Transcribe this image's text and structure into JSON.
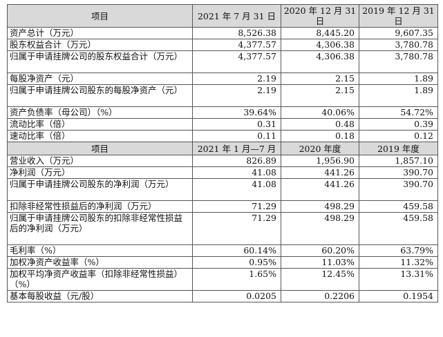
{
  "header1": [
    "项目",
    "2021 年 7 月 31 日",
    "2020 年 12 月 31 日",
    "2019 年 12 月 31 日"
  ],
  "rows1": [
    {
      "label": "资产总计（万元）",
      "values": [
        "8,526.38",
        "8,445.20",
        "9,607.35"
      ]
    },
    {
      "label": "股东权益合计（万元）",
      "values": [
        "4,377.57",
        "4,306.38",
        "3,780.78"
      ]
    },
    {
      "label": "归属于申请挂牌公司的股东权益合计（万元）",
      "values": [
        "4,377.57",
        "4,306.38",
        "3,780.78"
      ]
    },
    {
      "label": "每股净资产（元）",
      "values": [
        "2.19",
        "2.15",
        "1.89"
      ]
    },
    {
      "label": "归属于申请挂牌公司股东的每股净资产（元）",
      "values": [
        "2.19",
        "2.15",
        "1.89"
      ]
    },
    {
      "label": "资产负债率（母公司）（%）",
      "values": [
        "39.64%",
        "40.06%",
        "54.72%"
      ]
    },
    {
      "label": "流动比率（倍）",
      "values": [
        "0.31",
        "0.48",
        "0.39"
      ]
    },
    {
      "label": "速动比率（倍）",
      "values": [
        "0.11",
        "0.18",
        "0.12"
      ]
    }
  ],
  "header2": [
    "项目",
    "2021 年 1 月—7 月",
    "2020 年度",
    "2019 年度"
  ],
  "rows2": [
    {
      "label": "营业收入（万元）",
      "values": [
        "826.89",
        "1,956.90",
        "1,857.10"
      ]
    },
    {
      "label": "净利润（万元）",
      "values": [
        "41.08",
        "441.26",
        "390.70"
      ]
    },
    {
      "label": "归属于申请挂牌公司股东的净利润（万元）",
      "values": [
        "41.08",
        "441.26",
        "390.70"
      ]
    },
    {
      "label": "扣除非经常性损益后的净利润（万元）",
      "values": [
        "71.29",
        "498.29",
        "459.58"
      ]
    },
    {
      "label": "归属于申请挂牌公司股东的扣除非经常性损益后的净利润（万元）",
      "values": [
        "71.29",
        "498.29",
        "459.58"
      ]
    },
    {
      "label": "毛利率（%）",
      "values": [
        "60.14%",
        "60.20%",
        "63.79%"
      ]
    },
    {
      "label": "加权净资产收益率（%）",
      "values": [
        "0.95%",
        "11.03%",
        "11.32%"
      ]
    },
    {
      "label": "加权平均净资产收益率（扣除非经常性损益）（%）",
      "values": [
        "1.65%",
        "12.45%",
        "13.31%"
      ]
    },
    {
      "label": "基本每股收益（元/股）",
      "values": [
        "0.0205",
        "0.2206",
        "0.1954"
      ]
    }
  ]
}
